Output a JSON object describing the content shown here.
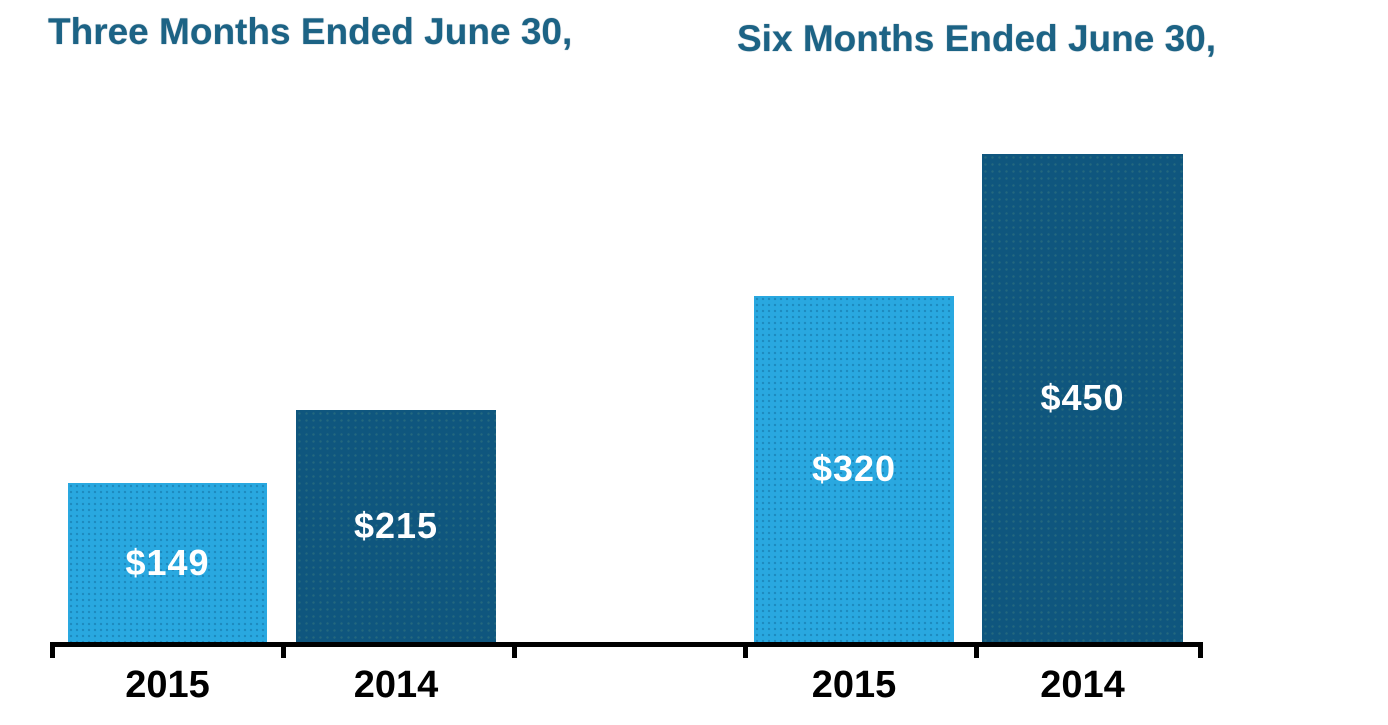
{
  "colors": {
    "bar-2015": "#29A8E0",
    "bar-2014": "#0F567E",
    "title-text": "#1C6385",
    "value-text": "#FFFFFF",
    "axis": "#000000",
    "background": "#FFFFFF"
  },
  "chart_data": {
    "type": "bar",
    "groups": [
      {
        "title": "Three Months Ended June 30,",
        "categories": [
          "2015",
          "2014"
        ],
        "values": [
          149,
          215
        ],
        "data_labels": [
          "$149",
          "$215"
        ],
        "bar_colors": [
          "#29A8E0",
          "#0F567E"
        ]
      },
      {
        "title": "Six Months Ended June 30,",
        "categories": [
          "2015",
          "2014"
        ],
        "values": [
          320,
          450
        ],
        "data_labels": [
          "$320",
          "$450"
        ],
        "bar_colors": [
          "#29A8E0",
          "#0F567E"
        ]
      }
    ],
    "xlabel": "",
    "ylabel": "",
    "ylim": [
      0,
      500
    ],
    "y_axis_visible": false,
    "x_axis_visible": true,
    "grid": false,
    "legend": false,
    "data_labels_position": "inside-center",
    "data_labels_color": "#FFFFFF",
    "units": "dollars"
  }
}
